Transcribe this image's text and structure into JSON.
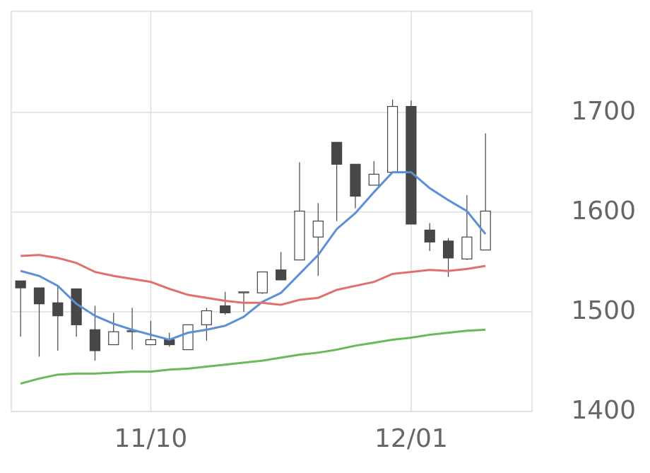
{
  "chart_data": {
    "type": "candlestick",
    "categories": [
      null,
      null,
      null,
      null,
      null,
      null,
      null,
      "11/10",
      null,
      null,
      null,
      null,
      null,
      null,
      null,
      null,
      null,
      null,
      null,
      null,
      null,
      "12/01",
      null,
      null,
      null,
      null,
      null,
      null
    ],
    "open": [
      1531,
      1524,
      1509,
      1523,
      1482,
      1467,
      1480,
      1467,
      1472,
      1462,
      1487,
      1506,
      1519,
      1519,
      1542,
      1552,
      1575,
      1670,
      1648,
      1627,
      1640,
      1706,
      1582,
      1571,
      1553,
      1562,
      null,
      null
    ],
    "high": [
      1531,
      1524,
      1526,
      1523,
      1506,
      1499,
      1504,
      1491,
      1479,
      1487,
      1504,
      1520,
      1520,
      1540,
      1560,
      1650,
      1609,
      1670,
      1648,
      1651,
      1713,
      1712,
      1589,
      1574,
      1617,
      1679,
      null,
      null
    ],
    "low": [
      1475,
      1455,
      1461,
      1475,
      1451,
      1467,
      1462,
      1467,
      1465,
      1462,
      1471,
      1497,
      1500,
      1518,
      1532,
      1552,
      1536,
      1591,
      1604,
      1627,
      1640,
      1588,
      1561,
      1535,
      1552,
      1562,
      null,
      null
    ],
    "close": [
      1524,
      1508,
      1496,
      1487,
      1461,
      1480,
      1481,
      1472,
      1467,
      1487,
      1501,
      1499,
      1520,
      1540,
      1532,
      1601,
      1591,
      1648,
      1616,
      1638,
      1706,
      1588,
      1570,
      1554,
      1575,
      1601,
      null,
      null
    ],
    "up_color": "#ffffff",
    "down_color": "#474747",
    "wick_color": "#444444",
    "lines": [
      {
        "color": "#5b8fd6",
        "values": [
          1541,
          1536,
          1526,
          1508,
          1496,
          1488,
          1482,
          1477,
          1472,
          1479,
          1482,
          1486,
          1495,
          1510,
          1519,
          1538,
          1557,
          1583,
          1599,
          1620,
          1640,
          1640,
          1624,
          1612,
          1601,
          1578,
          null,
          null
        ]
      },
      {
        "color": "#e07070",
        "values": [
          1556,
          1557,
          1554,
          1549,
          1540,
          1536,
          1533,
          1530,
          1523,
          1517,
          1514,
          1511,
          1509,
          1509,
          1507,
          1512,
          1514,
          1522,
          1526,
          1530,
          1538,
          1540,
          1542,
          1541,
          1543,
          1546,
          null,
          null
        ]
      },
      {
        "color": "#6cb85c",
        "values": [
          1428,
          1433,
          1437,
          1438,
          1438,
          1439,
          1440,
          1440,
          1442,
          1443,
          1445,
          1447,
          1449,
          1451,
          1454,
          1457,
          1459,
          1462,
          1466,
          1469,
          1472,
          1474,
          1477,
          1479,
          1481,
          1482,
          null,
          null
        ]
      }
    ],
    "ylim": [
      1400,
      1800
    ],
    "yticks": [
      1400,
      1500,
      1600,
      1700
    ],
    "grid": true
  }
}
